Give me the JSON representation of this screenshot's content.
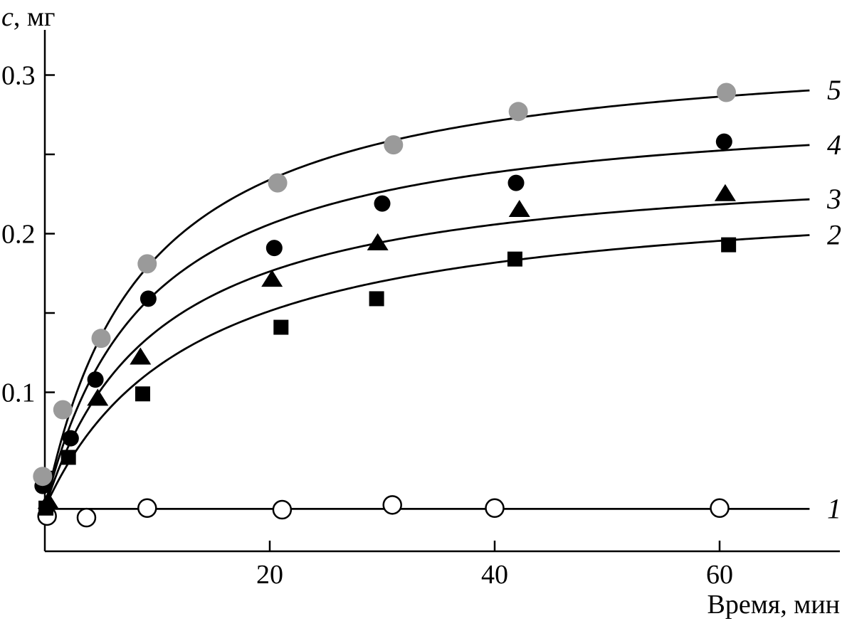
{
  "chart_data": {
    "type": "scatter",
    "title": "",
    "ylabel_symbol": "c",
    "ylabel_unit": ", мг",
    "xlabel": "Время, мин",
    "xlim": [
      0,
      68
    ],
    "ylim": [
      0,
      0.315
    ],
    "x_ticks": [
      20,
      40,
      60
    ],
    "x_tick_labels": [
      "20",
      "40",
      "60"
    ],
    "y_ticks": [
      0.1,
      0.2,
      0.3
    ],
    "y_tick_labels": [
      "0.1",
      "0.2",
      "0.3"
    ],
    "y_minor_ticks": [
      0.05,
      0.15,
      0.25
    ],
    "grid": false,
    "legend": "inline labels at right end of curves",
    "series": [
      {
        "name": "1",
        "marker": "open-circle",
        "color": "#000000",
        "points": [
          [
            0.2,
            0.022
          ],
          [
            3.7,
            0.021
          ],
          [
            9.1,
            0.027
          ],
          [
            21.1,
            0.026
          ],
          [
            30.9,
            0.029
          ],
          [
            40.0,
            0.027
          ],
          [
            60.0,
            0.027
          ]
        ],
        "fit": {
          "kind": "const",
          "a": 0.0265
        }
      },
      {
        "name": "2",
        "marker": "filled-square",
        "color": "#000000",
        "points": [
          [
            0.1,
            0.027
          ],
          [
            2.1,
            0.059
          ],
          [
            8.7,
            0.099
          ],
          [
            21.0,
            0.141
          ],
          [
            29.5,
            0.159
          ],
          [
            41.8,
            0.184
          ],
          [
            60.8,
            0.193
          ]
        ],
        "fit": {
          "kind": "hyperbolic",
          "y0": 0.027,
          "a": 0.205,
          "k": 13.0
        }
      },
      {
        "name": "3",
        "marker": "filled-triangle",
        "color": "#000000",
        "points": [
          [
            0.3,
            0.031
          ],
          [
            4.7,
            0.096
          ],
          [
            8.5,
            0.122
          ],
          [
            20.2,
            0.171
          ],
          [
            29.6,
            0.194
          ],
          [
            42.2,
            0.215
          ],
          [
            60.5,
            0.225
          ]
        ],
        "fit": {
          "kind": "hyperbolic",
          "y0": 0.027,
          "a": 0.223,
          "k": 9.9
        }
      },
      {
        "name": "4",
        "marker": "filled-circle",
        "color": "#000000",
        "points": [
          [
            -0.2,
            0.041
          ],
          [
            2.3,
            0.071
          ],
          [
            4.5,
            0.108
          ],
          [
            9.2,
            0.159
          ],
          [
            20.4,
            0.191
          ],
          [
            30.0,
            0.219
          ],
          [
            41.9,
            0.232
          ],
          [
            60.4,
            0.258
          ]
        ],
        "fit": {
          "kind": "hyperbolic",
          "y0": 0.027,
          "a": 0.259,
          "k": 8.95
        }
      },
      {
        "name": "5",
        "marker": "gray-circle",
        "color": "#9a9a9a",
        "points": [
          [
            -0.2,
            0.047
          ],
          [
            1.6,
            0.089
          ],
          [
            5.0,
            0.134
          ],
          [
            9.1,
            0.181
          ],
          [
            20.7,
            0.232
          ],
          [
            31.0,
            0.256
          ],
          [
            42.1,
            0.277
          ],
          [
            60.6,
            0.289
          ]
        ],
        "fit": {
          "kind": "hyperbolic",
          "y0": 0.027,
          "a": 0.297,
          "k": 8.7
        }
      }
    ]
  }
}
